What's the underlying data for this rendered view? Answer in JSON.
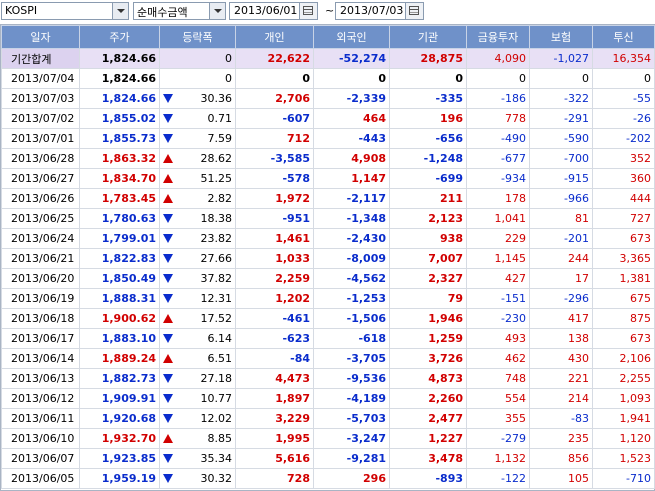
{
  "toolbar": {
    "market": "KOSPI",
    "mode": "순매수금액",
    "date_from": "2013/06/01",
    "date_to": "2013/07/03",
    "separator": "~"
  },
  "columns": [
    "일자",
    "주가",
    "등락폭",
    "개인",
    "외국인",
    "기관",
    "금융투자",
    "보험",
    "투신"
  ],
  "total": {
    "date": "기간합계",
    "price": "1,824.66",
    "change": "0",
    "retail": "22,622",
    "foreign": "-52,274",
    "inst": "28,875",
    "fin": "4,090",
    "ins": "-1,027",
    "trust": "16,354"
  },
  "rows": [
    {
      "date": "2013/07/04",
      "price": "1,824.66",
      "dir": "none",
      "change": "0",
      "retail": "0",
      "foreign": "0",
      "inst": "0",
      "fin": "0",
      "ins": "0",
      "trust": "0"
    },
    {
      "date": "2013/07/03",
      "price": "1,824.66",
      "dir": "down",
      "change": "30.36",
      "retail": "2,706",
      "foreign": "-2,339",
      "inst": "-335",
      "fin": "-186",
      "ins": "-322",
      "trust": "-55"
    },
    {
      "date": "2013/07/02",
      "price": "1,855.02",
      "dir": "down",
      "change": "0.71",
      "retail": "-607",
      "foreign": "464",
      "inst": "196",
      "fin": "778",
      "ins": "-291",
      "trust": "-26"
    },
    {
      "date": "2013/07/01",
      "price": "1,855.73",
      "dir": "down",
      "change": "7.59",
      "retail": "712",
      "foreign": "-443",
      "inst": "-656",
      "fin": "-490",
      "ins": "-590",
      "trust": "-202"
    },
    {
      "date": "2013/06/28",
      "price": "1,863.32",
      "dir": "up",
      "change": "28.62",
      "retail": "-3,585",
      "foreign": "4,908",
      "inst": "-1,248",
      "fin": "-677",
      "ins": "-700",
      "trust": "352"
    },
    {
      "date": "2013/06/27",
      "price": "1,834.70",
      "dir": "up",
      "change": "51.25",
      "retail": "-578",
      "foreign": "1,147",
      "inst": "-699",
      "fin": "-934",
      "ins": "-915",
      "trust": "360"
    },
    {
      "date": "2013/06/26",
      "price": "1,783.45",
      "dir": "up",
      "change": "2.82",
      "retail": "1,972",
      "foreign": "-2,117",
      "inst": "211",
      "fin": "178",
      "ins": "-966",
      "trust": "444"
    },
    {
      "date": "2013/06/25",
      "price": "1,780.63",
      "dir": "down",
      "change": "18.38",
      "retail": "-951",
      "foreign": "-1,348",
      "inst": "2,123",
      "fin": "1,041",
      "ins": "81",
      "trust": "727"
    },
    {
      "date": "2013/06/24",
      "price": "1,799.01",
      "dir": "down",
      "change": "23.82",
      "retail": "1,461",
      "foreign": "-2,430",
      "inst": "938",
      "fin": "229",
      "ins": "-201",
      "trust": "673"
    },
    {
      "date": "2013/06/21",
      "price": "1,822.83",
      "dir": "down",
      "change": "27.66",
      "retail": "1,033",
      "foreign": "-8,009",
      "inst": "7,007",
      "fin": "1,145",
      "ins": "244",
      "trust": "3,365"
    },
    {
      "date": "2013/06/20",
      "price": "1,850.49",
      "dir": "down",
      "change": "37.82",
      "retail": "2,259",
      "foreign": "-4,562",
      "inst": "2,327",
      "fin": "427",
      "ins": "17",
      "trust": "1,381"
    },
    {
      "date": "2013/06/19",
      "price": "1,888.31",
      "dir": "down",
      "change": "12.31",
      "retail": "1,202",
      "foreign": "-1,253",
      "inst": "79",
      "fin": "-151",
      "ins": "-296",
      "trust": "675"
    },
    {
      "date": "2013/06/18",
      "price": "1,900.62",
      "dir": "up",
      "change": "17.52",
      "retail": "-461",
      "foreign": "-1,506",
      "inst": "1,946",
      "fin": "-230",
      "ins": "417",
      "trust": "875"
    },
    {
      "date": "2013/06/17",
      "price": "1,883.10",
      "dir": "down",
      "change": "6.14",
      "retail": "-623",
      "foreign": "-618",
      "inst": "1,259",
      "fin": "493",
      "ins": "138",
      "trust": "673"
    },
    {
      "date": "2013/06/14",
      "price": "1,889.24",
      "dir": "up",
      "change": "6.51",
      "retail": "-84",
      "foreign": "-3,705",
      "inst": "3,726",
      "fin": "462",
      "ins": "430",
      "trust": "2,106"
    },
    {
      "date": "2013/06/13",
      "price": "1,882.73",
      "dir": "down",
      "change": "27.18",
      "retail": "4,473",
      "foreign": "-9,536",
      "inst": "4,873",
      "fin": "748",
      "ins": "221",
      "trust": "2,255"
    },
    {
      "date": "2013/06/12",
      "price": "1,909.91",
      "dir": "down",
      "change": "10.77",
      "retail": "1,897",
      "foreign": "-4,189",
      "inst": "2,260",
      "fin": "554",
      "ins": "214",
      "trust": "1,093"
    },
    {
      "date": "2013/06/11",
      "price": "1,920.68",
      "dir": "down",
      "change": "12.02",
      "retail": "3,229",
      "foreign": "-5,703",
      "inst": "2,477",
      "fin": "355",
      "ins": "-83",
      "trust": "1,941"
    },
    {
      "date": "2013/06/10",
      "price": "1,932.70",
      "dir": "up",
      "change": "8.85",
      "retail": "1,995",
      "foreign": "-3,247",
      "inst": "1,227",
      "fin": "-279",
      "ins": "235",
      "trust": "1,120"
    },
    {
      "date": "2013/06/07",
      "price": "1,923.85",
      "dir": "down",
      "change": "35.34",
      "retail": "5,616",
      "foreign": "-9,281",
      "inst": "3,478",
      "fin": "1,132",
      "ins": "856",
      "trust": "1,523"
    },
    {
      "date": "2013/06/05",
      "price": "1,959.19",
      "dir": "down",
      "change": "30.32",
      "retail": "728",
      "foreign": "296",
      "inst": "-893",
      "fin": "-122",
      "ins": "105",
      "trust": "-710"
    }
  ],
  "colors": {
    "up": "#d10000",
    "down": "#0a2ccc",
    "header": "#6f91c9"
  }
}
